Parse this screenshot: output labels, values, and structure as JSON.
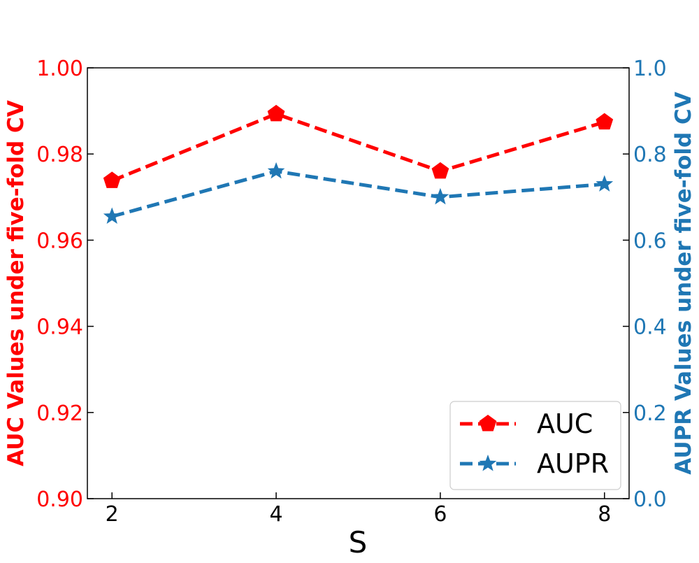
{
  "chart_data": {
    "type": "line",
    "x": [
      2,
      4,
      6,
      8
    ],
    "xticks": [
      "2",
      "4",
      "6",
      "8"
    ],
    "xlabel": "S",
    "y_left": {
      "label": "AUC Values under five-fold CV",
      "ylim": [
        0.9,
        1.0
      ],
      "ticks": [
        "0.90",
        "0.92",
        "0.94",
        "0.96",
        "0.98",
        "1.00"
      ],
      "color": "#ff0000"
    },
    "y_right": {
      "label": "AUPR Values under five-fold CV",
      "ylim": [
        0.0,
        1.0
      ],
      "ticks": [
        "0.0",
        "0.2",
        "0.4",
        "0.6",
        "0.8",
        "1.0"
      ],
      "color": "#1f77b4"
    },
    "series": [
      {
        "name": "AUC",
        "axis": "left",
        "values": [
          0.9738,
          0.9893,
          0.976,
          0.9874
        ],
        "color": "#ff0000",
        "marker": "pentagon",
        "linestyle": "dashed"
      },
      {
        "name": "AUPR",
        "axis": "right",
        "values": [
          0.655,
          0.76,
          0.7,
          0.73
        ],
        "color": "#1f77b4",
        "marker": "star",
        "linestyle": "dashed"
      }
    ],
    "legend": {
      "position": "lower-right",
      "entries": [
        "AUC",
        "AUPR"
      ]
    },
    "grid": false
  }
}
